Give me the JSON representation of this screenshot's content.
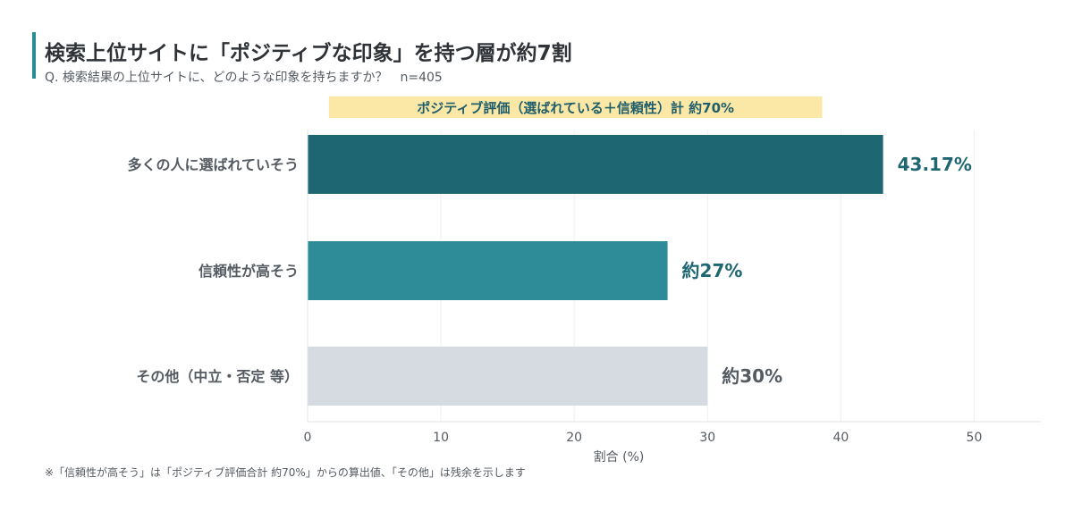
{
  "header": {
    "title": "検索上位サイトに「ポジティブな印象」を持つ層が約7割",
    "subtitle": "Q. 検索結果の上位サイトに、どのような印象を持ちますか？　n=405"
  },
  "footnote": "※「信頼性が高そう」は「ポジティブ評価合計 約70%」からの算出値、「その他」は残余を示します",
  "chart_data": {
    "type": "bar",
    "orientation": "horizontal",
    "categories": [
      "多くの人に選ばれていそう",
      "信頼性が高そう",
      "その他（中立・否定 等）"
    ],
    "values": [
      43.17,
      27,
      30
    ],
    "value_labels": [
      "43.17%",
      "約27%",
      "約30%"
    ],
    "bar_colors": [
      "#1f6673",
      "#2e8c98",
      "#d6dbe2"
    ],
    "label_colors": [
      "#1f6673",
      "#1f6673",
      "#555b62"
    ],
    "xlabel": "割合 (%)",
    "xlim": [
      0,
      55
    ],
    "xticks": [
      0,
      10,
      20,
      30,
      40,
      50
    ],
    "grid": true,
    "annotation": {
      "text": "ポジティブ評価（選ばれている＋信頼性）計 約70%",
      "range": [
        1.6,
        38.6
      ],
      "color": "#fbe8a6"
    }
  }
}
